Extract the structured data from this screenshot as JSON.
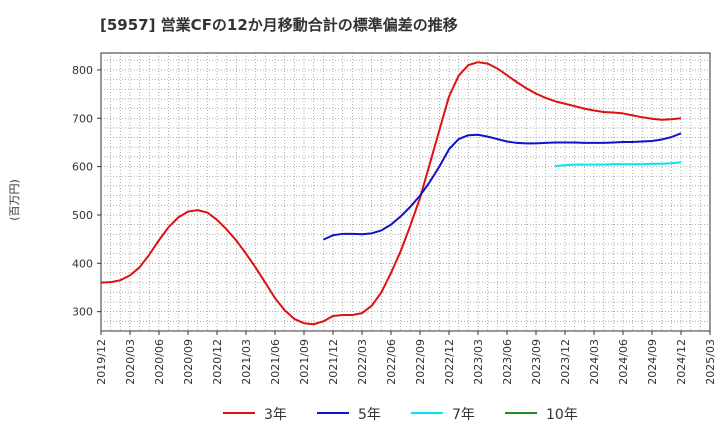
{
  "chart_data": {
    "type": "line",
    "title": "[5957]  営業CFの12か月移動合計の標準偏差の推移",
    "ylabel": "(百万円)",
    "xlabel": "",
    "ylim": [
      260,
      835
    ],
    "yticks": [
      300,
      400,
      500,
      600,
      700,
      800
    ],
    "xlim": [
      "2019-12",
      "2025-03"
    ],
    "xticks": [
      "2019/12",
      "2020/03",
      "2020/06",
      "2020/09",
      "2020/12",
      "2021/03",
      "2021/06",
      "2021/09",
      "2021/12",
      "2022/03",
      "2022/06",
      "2022/09",
      "2022/12",
      "2023/03",
      "2023/06",
      "2023/09",
      "2023/12",
      "2024/03",
      "2024/06",
      "2024/09",
      "2024/12",
      "2025/03"
    ],
    "grid": true,
    "legend_position": "bottom",
    "series": [
      {
        "name": "3年",
        "color": "#dd1111",
        "points": [
          [
            "2019-12",
            360
          ],
          [
            "2020-01",
            361
          ],
          [
            "2020-02",
            365
          ],
          [
            "2020-03",
            375
          ],
          [
            "2020-04",
            392
          ],
          [
            "2020-05",
            418
          ],
          [
            "2020-06",
            448
          ],
          [
            "2020-07",
            475
          ],
          [
            "2020-08",
            495
          ],
          [
            "2020-09",
            507
          ],
          [
            "2020-10",
            510
          ],
          [
            "2020-11",
            505
          ],
          [
            "2020-12",
            490
          ],
          [
            "2021-01",
            470
          ],
          [
            "2021-02",
            447
          ],
          [
            "2021-03",
            420
          ],
          [
            "2021-04",
            391
          ],
          [
            "2021-05",
            360
          ],
          [
            "2021-06",
            328
          ],
          [
            "2021-07",
            303
          ],
          [
            "2021-08",
            285
          ],
          [
            "2021-09",
            276
          ],
          [
            "2021-10",
            274
          ],
          [
            "2021-11",
            280
          ],
          [
            "2021-12",
            291
          ],
          [
            "2022-01",
            293
          ],
          [
            "2022-02",
            293
          ],
          [
            "2022-03",
            297
          ],
          [
            "2022-04",
            312
          ],
          [
            "2022-05",
            340
          ],
          [
            "2022-06",
            380
          ],
          [
            "2022-07",
            425
          ],
          [
            "2022-08",
            478
          ],
          [
            "2022-09",
            535
          ],
          [
            "2022-10",
            605
          ],
          [
            "2022-11",
            675
          ],
          [
            "2022-12",
            745
          ],
          [
            "2023-01",
            788
          ],
          [
            "2023-02",
            810
          ],
          [
            "2023-03",
            816
          ],
          [
            "2023-04",
            813
          ],
          [
            "2023-05",
            803
          ],
          [
            "2023-06",
            789
          ],
          [
            "2023-07",
            775
          ],
          [
            "2023-08",
            762
          ],
          [
            "2023-09",
            751
          ],
          [
            "2023-10",
            742
          ],
          [
            "2023-11",
            735
          ],
          [
            "2023-12",
            730
          ],
          [
            "2024-01",
            725
          ],
          [
            "2024-02",
            720
          ],
          [
            "2024-03",
            716
          ],
          [
            "2024-04",
            713
          ],
          [
            "2024-05",
            712
          ],
          [
            "2024-06",
            710
          ],
          [
            "2024-07",
            706
          ],
          [
            "2024-08",
            702
          ],
          [
            "2024-09",
            699
          ],
          [
            "2024-10",
            697
          ],
          [
            "2024-11",
            698
          ],
          [
            "2024-12",
            700
          ]
        ]
      },
      {
        "name": "5年",
        "color": "#1111cc",
        "points": [
          [
            "2021-11",
            449
          ],
          [
            "2021-12",
            458
          ],
          [
            "2022-01",
            461
          ],
          [
            "2022-02",
            461
          ],
          [
            "2022-03",
            460
          ],
          [
            "2022-04",
            462
          ],
          [
            "2022-05",
            468
          ],
          [
            "2022-06",
            480
          ],
          [
            "2022-07",
            497
          ],
          [
            "2022-08",
            517
          ],
          [
            "2022-09",
            540
          ],
          [
            "2022-10",
            568
          ],
          [
            "2022-11",
            600
          ],
          [
            "2022-12",
            636
          ],
          [
            "2023-01",
            657
          ],
          [
            "2023-02",
            665
          ],
          [
            "2023-03",
            666
          ],
          [
            "2023-04",
            662
          ],
          [
            "2023-05",
            657
          ],
          [
            "2023-06",
            652
          ],
          [
            "2023-07",
            649
          ],
          [
            "2023-08",
            648
          ],
          [
            "2023-09",
            648
          ],
          [
            "2023-10",
            649
          ],
          [
            "2023-11",
            650
          ],
          [
            "2023-12",
            650
          ],
          [
            "2024-01",
            650
          ],
          [
            "2024-02",
            649
          ],
          [
            "2024-03",
            649
          ],
          [
            "2024-04",
            649
          ],
          [
            "2024-05",
            650
          ],
          [
            "2024-06",
            651
          ],
          [
            "2024-07",
            651
          ],
          [
            "2024-08",
            652
          ],
          [
            "2024-09",
            653
          ],
          [
            "2024-10",
            656
          ],
          [
            "2024-11",
            661
          ],
          [
            "2024-12",
            669
          ]
        ]
      },
      {
        "name": "7年",
        "color": "#00e5ee",
        "points": [
          [
            "2023-11",
            601
          ],
          [
            "2023-12",
            603
          ],
          [
            "2024-01",
            604
          ],
          [
            "2024-02",
            604
          ],
          [
            "2024-03",
            604
          ],
          [
            "2024-04",
            604
          ],
          [
            "2024-05",
            605
          ],
          [
            "2024-06",
            605
          ],
          [
            "2024-07",
            605
          ],
          [
            "2024-08",
            605
          ],
          [
            "2024-09",
            606
          ],
          [
            "2024-10",
            606
          ],
          [
            "2024-11",
            607
          ],
          [
            "2024-12",
            609
          ]
        ]
      },
      {
        "name": "10年",
        "color": "#228b22",
        "points": []
      }
    ]
  }
}
